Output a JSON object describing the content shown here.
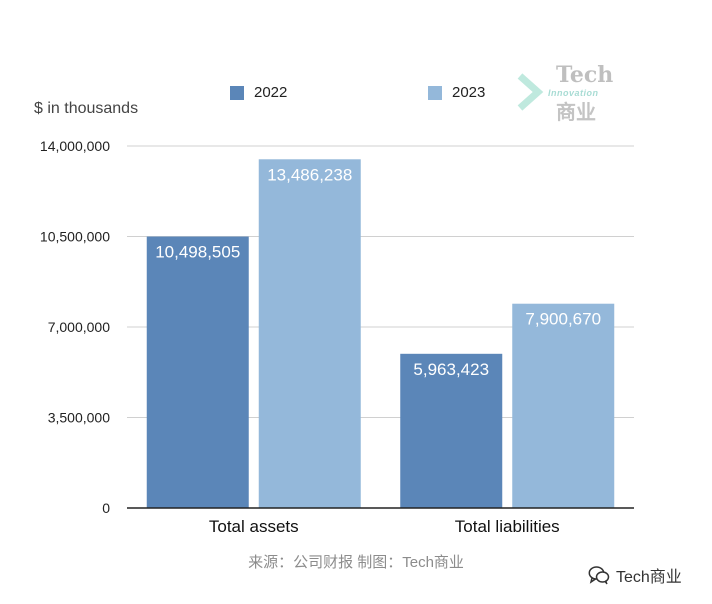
{
  "chart_data": {
    "type": "bar",
    "categories": [
      "Total assets",
      "Total liabilities"
    ],
    "series": [
      {
        "name": "2022",
        "values": [
          10498505,
          5963423
        ],
        "color": "#5b86b8",
        "labels": [
          "10,498,505",
          "5,963,423"
        ]
      },
      {
        "name": "2023",
        "values": [
          13486238,
          7900670
        ],
        "color": "#94b8da",
        "labels": [
          "13,486,238",
          "7,900,670"
        ]
      }
    ],
    "ylabel": "$ in thousands",
    "ylim": [
      0,
      14000000
    ],
    "yticks": [
      0,
      3500000,
      7000000,
      10500000,
      14000000
    ],
    "ytick_labels": [
      "0",
      "3,500,000",
      "7,000,000",
      "10,500,000",
      "14,000,000"
    ],
    "grid": true,
    "legend": "top"
  },
  "logo": {
    "text_top": "Tech",
    "text_mid": "Innovation",
    "text_cn": "商业"
  },
  "source": "来源：公司财报 制图：Tech商业",
  "wechat": {
    "label": "Tech商业",
    "icon": "wechat-icon"
  }
}
